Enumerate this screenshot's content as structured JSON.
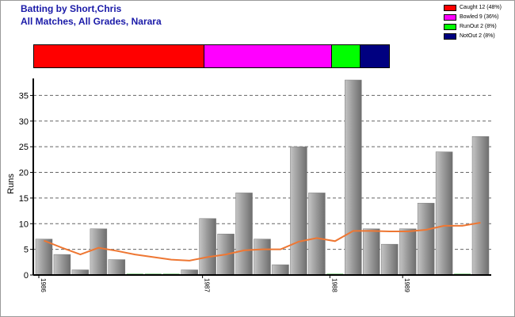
{
  "header": {
    "title": "Batting by Short,Chris",
    "subtitle": "All Matches, All Grades, Narara"
  },
  "legend": {
    "items": [
      {
        "label": "Caught 12 (48%)",
        "color": "#ff0000",
        "fraction": 0.48
      },
      {
        "label": "Bowled 9 (36%)",
        "color": "#ff00ff",
        "fraction": 0.36
      },
      {
        "label": "RunOut 2 (8%)",
        "color": "#00ff00",
        "fraction": 0.08
      },
      {
        "label": "NotOut 2 (8%)",
        "color": "#000080",
        "fraction": 0.08
      }
    ]
  },
  "chart_data": {
    "type": "bar",
    "ylabel": "Runs",
    "ylim": [
      0,
      38
    ],
    "yticks": [
      0,
      5,
      10,
      15,
      20,
      25,
      30,
      35
    ],
    "grid": true,
    "values": [
      7,
      4,
      1,
      9,
      3,
      0,
      0,
      0,
      1,
      11,
      8,
      16,
      7,
      2,
      25,
      16,
      0,
      38,
      9,
      6,
      9,
      14,
      24,
      0,
      27
    ],
    "year_labels": [
      {
        "label": "1986",
        "index": 0
      },
      {
        "label": "1987",
        "index": 9
      },
      {
        "label": "1988",
        "index": 16
      },
      {
        "label": "1989",
        "index": 20
      }
    ],
    "trend": [
      6.7,
      5.3,
      4.0,
      5.3,
      4.7,
      4.0,
      3.5,
      3.0,
      2.8,
      3.5,
      4.0,
      4.8,
      5.0,
      5.0,
      6.5,
      7.2,
      6.6,
      8.6,
      8.6,
      8.5,
      8.5,
      8.8,
      9.6,
      9.6,
      10.2
    ],
    "bar_color": "#999999",
    "trend_color": "#ee7733"
  }
}
